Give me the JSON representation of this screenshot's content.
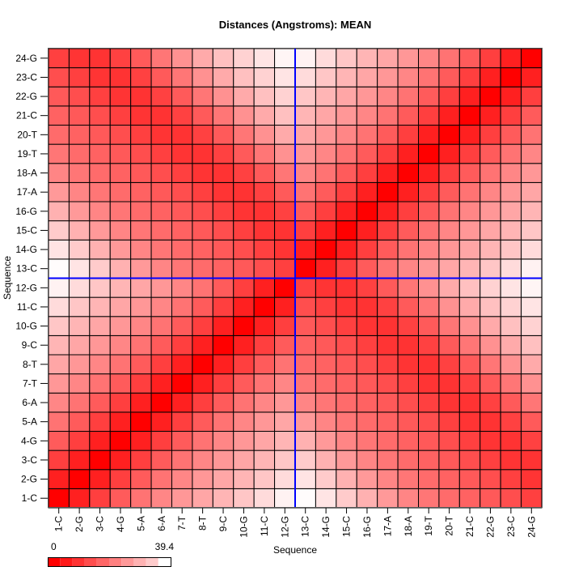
{
  "chart_data": {
    "type": "heatmap",
    "title": "Distances (Angstroms):  MEAN",
    "xlabel": "Sequence",
    "ylabel": "Sequence",
    "labels": [
      "1-C",
      "2-G",
      "3-C",
      "4-G",
      "5-A",
      "6-A",
      "7-T",
      "8-T",
      "9-C",
      "10-G",
      "11-C",
      "12-G",
      "13-C",
      "14-G",
      "15-C",
      "16-G",
      "17-A",
      "18-A",
      "19-T",
      "20-T",
      "21-C",
      "22-G",
      "23-C",
      "24-G"
    ],
    "strand_divider_after": 12,
    "divider_color": "#0000ff",
    "color_low": "#ff0000",
    "color_high": "#ffffff",
    "legend": {
      "min_label": "0",
      "max_label": "39.4",
      "min": 0,
      "max": 39.4,
      "bins": 10
    },
    "values": [
      [
        0,
        5.0,
        9.8,
        14.0,
        17.7,
        20.7,
        23.3,
        25.6,
        27.9,
        30.6,
        33.8,
        37.4,
        38.9,
        35.2,
        31.3,
        27.3,
        23.7,
        20.5,
        18.2,
        16.5,
        15.2,
        13.8,
        12.0,
        9.9
      ],
      [
        5.0,
        0,
        5.0,
        9.8,
        14.0,
        17.7,
        20.7,
        23.3,
        25.6,
        27.9,
        30.6,
        33.8,
        35.2,
        31.3,
        27.3,
        23.7,
        20.5,
        18.2,
        16.5,
        15.2,
        13.8,
        12.0,
        9.9,
        8.1
      ],
      [
        9.8,
        5.0,
        0,
        5.0,
        9.8,
        14.0,
        17.7,
        20.7,
        23.3,
        25.6,
        27.9,
        30.6,
        31.3,
        27.3,
        23.7,
        20.5,
        18.2,
        16.5,
        15.2,
        13.8,
        12.0,
        9.9,
        8.1,
        7.9
      ],
      [
        14.0,
        9.8,
        5.0,
        0,
        5.0,
        9.8,
        14.0,
        17.7,
        20.7,
        23.3,
        25.6,
        27.9,
        27.3,
        23.7,
        20.5,
        18.2,
        16.5,
        15.2,
        13.8,
        12.0,
        9.9,
        8.1,
        7.9,
        10.1
      ],
      [
        17.7,
        14.0,
        9.8,
        5.0,
        0,
        5.0,
        9.8,
        14.0,
        17.7,
        20.7,
        23.3,
        25.6,
        23.7,
        20.5,
        18.2,
        16.5,
        15.2,
        13.8,
        12.0,
        9.9,
        8.1,
        7.9,
        10.1,
        13.9
      ],
      [
        20.7,
        17.7,
        14.0,
        9.8,
        5.0,
        0,
        5.0,
        9.8,
        14.0,
        17.7,
        20.7,
        23.3,
        20.5,
        18.2,
        16.5,
        15.2,
        13.8,
        12.0,
        9.9,
        8.1,
        7.9,
        10.1,
        13.9,
        18.2
      ],
      [
        23.3,
        20.7,
        17.7,
        14.0,
        9.8,
        5.0,
        0,
        5.0,
        9.8,
        14.0,
        17.7,
        20.7,
        18.2,
        16.5,
        15.2,
        13.8,
        12.0,
        9.9,
        8.1,
        7.9,
        10.1,
        13.9,
        18.2,
        22.4
      ],
      [
        25.6,
        23.3,
        20.7,
        17.7,
        14.0,
        9.8,
        5.0,
        0,
        5.0,
        9.8,
        14.0,
        17.7,
        16.5,
        15.2,
        13.8,
        12.0,
        9.9,
        8.1,
        7.9,
        10.1,
        13.9,
        18.2,
        22.4,
        26.2
      ],
      [
        27.9,
        25.6,
        23.3,
        20.7,
        17.7,
        14.0,
        9.8,
        5.0,
        0,
        5.0,
        9.8,
        14.0,
        15.2,
        13.8,
        12.0,
        9.9,
        8.1,
        7.9,
        10.1,
        13.9,
        18.2,
        22.4,
        26.2,
        29.6
      ],
      [
        30.6,
        27.9,
        25.6,
        23.3,
        20.7,
        17.7,
        14.0,
        9.8,
        5.0,
        0,
        5.0,
        9.8,
        13.8,
        12.0,
        9.9,
        8.1,
        7.9,
        10.1,
        13.9,
        18.2,
        22.4,
        26.2,
        29.6,
        32.5
      ],
      [
        33.8,
        30.6,
        27.9,
        25.6,
        23.3,
        20.7,
        17.7,
        14.0,
        9.8,
        5.0,
        0,
        5.0,
        12.0,
        9.9,
        8.1,
        7.9,
        10.1,
        13.9,
        18.2,
        22.4,
        26.2,
        29.6,
        32.5,
        35.2
      ],
      [
        37.4,
        33.8,
        30.6,
        27.9,
        25.6,
        23.3,
        20.7,
        17.7,
        14.0,
        9.8,
        5.0,
        0,
        9.9,
        8.1,
        7.9,
        10.1,
        13.9,
        18.2,
        22.4,
        26.2,
        29.6,
        32.5,
        35.2,
        37.9
      ],
      [
        38.9,
        35.2,
        31.3,
        27.3,
        23.7,
        20.5,
        18.2,
        16.5,
        15.2,
        13.8,
        12.0,
        9.9,
        0,
        5.0,
        9.8,
        14.0,
        17.7,
        20.7,
        23.3,
        25.6,
        27.9,
        30.6,
        33.8,
        37.4
      ],
      [
        35.2,
        31.3,
        27.3,
        23.7,
        20.5,
        18.2,
        16.5,
        15.2,
        13.8,
        12.0,
        9.9,
        8.1,
        5.0,
        0,
        5.0,
        9.8,
        14.0,
        17.7,
        20.7,
        23.3,
        25.6,
        27.9,
        30.6,
        33.8
      ],
      [
        31.3,
        27.3,
        23.7,
        20.5,
        18.2,
        16.5,
        15.2,
        13.8,
        12.0,
        9.9,
        8.1,
        7.9,
        9.8,
        5.0,
        0,
        5.0,
        9.8,
        14.0,
        17.7,
        20.7,
        23.3,
        25.6,
        27.9,
        30.6
      ],
      [
        27.3,
        23.7,
        20.5,
        18.2,
        16.5,
        15.2,
        13.8,
        12.0,
        9.9,
        8.1,
        7.9,
        10.1,
        14.0,
        9.8,
        5.0,
        0,
        5.0,
        9.8,
        14.0,
        17.7,
        20.7,
        23.3,
        25.6,
        27.9
      ],
      [
        23.7,
        20.5,
        18.2,
        16.5,
        15.2,
        13.8,
        12.0,
        9.9,
        8.1,
        7.9,
        10.1,
        13.9,
        17.7,
        14.0,
        9.8,
        5.0,
        0,
        5.0,
        9.8,
        14.0,
        17.7,
        20.7,
        23.3,
        25.6
      ],
      [
        20.5,
        18.2,
        16.5,
        15.2,
        13.8,
        12.0,
        9.9,
        8.1,
        7.9,
        10.1,
        13.9,
        18.2,
        20.7,
        17.7,
        14.0,
        9.8,
        5.0,
        0,
        5.0,
        9.8,
        14.0,
        17.7,
        20.7,
        23.3
      ],
      [
        18.2,
        16.5,
        15.2,
        13.8,
        12.0,
        9.9,
        8.1,
        7.9,
        10.1,
        13.9,
        18.2,
        22.4,
        23.3,
        20.7,
        17.7,
        14.0,
        9.8,
        5.0,
        0,
        5.0,
        9.8,
        14.0,
        17.7,
        20.7
      ],
      [
        16.5,
        15.2,
        13.8,
        12.0,
        9.9,
        8.1,
        7.9,
        10.1,
        13.9,
        18.2,
        22.4,
        26.2,
        25.6,
        23.3,
        20.7,
        17.7,
        14.0,
        9.8,
        5.0,
        0,
        5.0,
        9.8,
        14.0,
        17.7
      ],
      [
        15.2,
        13.8,
        12.0,
        9.9,
        8.1,
        7.9,
        10.1,
        13.9,
        18.2,
        22.4,
        26.2,
        29.6,
        27.9,
        25.6,
        23.3,
        20.7,
        17.7,
        14.0,
        9.8,
        5.0,
        0,
        5.0,
        9.8,
        14.0
      ],
      [
        13.8,
        12.0,
        9.9,
        8.1,
        7.9,
        10.1,
        13.9,
        18.2,
        22.4,
        26.2,
        29.6,
        32.5,
        30.6,
        27.9,
        25.6,
        23.3,
        20.7,
        17.7,
        14.0,
        9.8,
        5.0,
        0,
        5.0,
        9.8
      ],
      [
        12.0,
        9.9,
        8.1,
        7.9,
        10.1,
        13.9,
        18.2,
        22.4,
        26.2,
        29.6,
        32.5,
        35.2,
        33.8,
        30.6,
        27.9,
        25.6,
        23.3,
        20.7,
        17.7,
        14.0,
        9.8,
        5.0,
        0,
        5.0
      ],
      [
        9.9,
        8.1,
        7.9,
        10.1,
        13.9,
        18.2,
        22.4,
        26.2,
        29.6,
        32.5,
        35.2,
        37.9,
        37.4,
        33.8,
        30.6,
        27.9,
        25.6,
        23.3,
        20.7,
        17.7,
        14.0,
        9.8,
        5.0,
        0
      ]
    ]
  }
}
